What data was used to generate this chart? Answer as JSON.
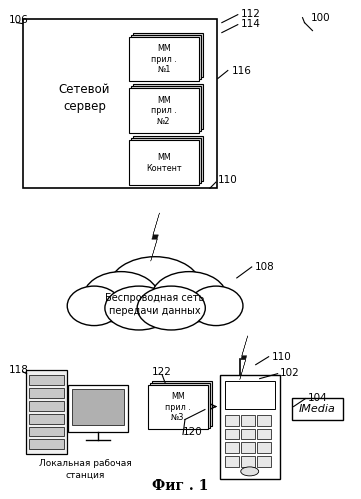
{
  "bg_color": "#ffffff",
  "fig_caption": "Фиг . 1",
  "server_label": "Сетевой\nсервер",
  "cloud_label": "Беспроводная сеть\nпередачи данных",
  "local_station_label": "Локальная рабочая\nстанция",
  "imedia_label": "IMedia",
  "mm_label_1": "ММ\nприл .\n№1",
  "mm_label_2": "ММ\nприл .\n№2",
  "mm_label_3": "ММ\nКонтент",
  "mm_label_local": "ММ\nприл .\n№3"
}
